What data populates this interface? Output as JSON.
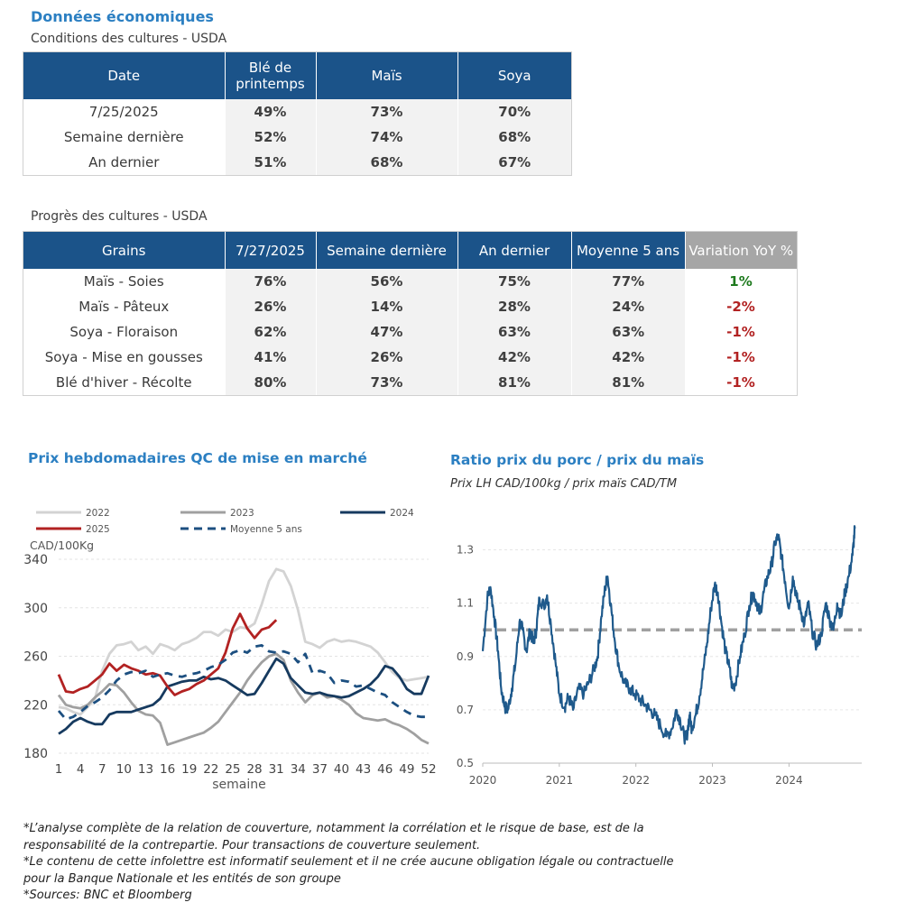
{
  "header": {
    "title": "Données économiques",
    "conditions_subtitle": "Conditions des cultures - USDA",
    "progress_subtitle": "Progrès des cultures - USDA"
  },
  "conditions_table": {
    "headers": [
      "Date",
      "Blé de printemps",
      "Maïs",
      "Soya"
    ],
    "rows": [
      {
        "label": "7/25/2025",
        "values": [
          "49%",
          "73%",
          "70%"
        ]
      },
      {
        "label": "Semaine dernière",
        "values": [
          "52%",
          "74%",
          "68%"
        ]
      },
      {
        "label": "An dernier",
        "values": [
          "51%",
          "68%",
          "67%"
        ]
      }
    ]
  },
  "progress_table": {
    "headers": [
      "Grains",
      "7/27/2025",
      "Semaine dernière",
      "An dernier",
      "Moyenne 5 ans",
      "Variation YoY %"
    ],
    "rows": [
      {
        "label": "Maïs - Soies",
        "values": [
          "76%",
          "56%",
          "75%",
          "77%"
        ],
        "variation": "1%"
      },
      {
        "label": "Maïs - Pâteux",
        "values": [
          "26%",
          "14%",
          "28%",
          "24%"
        ],
        "variation": "-2%"
      },
      {
        "label": "Soya - Floraison",
        "values": [
          "62%",
          "47%",
          "63%",
          "63%"
        ],
        "variation": "-1%"
      },
      {
        "label": "Soya - Mise en gousses",
        "values": [
          "41%",
          "26%",
          "42%",
          "42%"
        ],
        "variation": "-1%"
      },
      {
        "label": "Blé d'hiver - Récolte",
        "values": [
          "80%",
          "73%",
          "81%",
          "81%"
        ],
        "variation": "-1%"
      }
    ]
  },
  "colors": {
    "header_blue": "#1b5389",
    "title_blue": "#2b7fc2",
    "positive": "#1e7a1e",
    "negative": "#b22222"
  },
  "chart_data": [
    {
      "type": "line",
      "title": "Prix hebdomadaires QC de mise en marché",
      "ylabel": "CAD/100Kg",
      "xlabel": "semaine",
      "ylim": [
        180,
        340
      ],
      "yticks": [
        180,
        220,
        260,
        300,
        340
      ],
      "xticks": [
        1,
        4,
        7,
        10,
        13,
        16,
        19,
        22,
        25,
        28,
        31,
        34,
        37,
        40,
        43,
        46,
        49,
        52
      ],
      "grid": true,
      "legend": "top",
      "series": [
        {
          "name": "2022",
          "color": "#d3d3d3",
          "dash": false,
          "x": [
            1,
            2,
            3,
            4,
            5,
            6,
            7,
            8,
            9,
            10,
            11,
            12,
            13,
            14,
            15,
            16,
            17,
            18,
            19,
            20,
            21,
            22,
            23,
            24,
            25,
            26,
            27,
            28,
            29,
            30,
            31,
            32,
            33,
            34,
            35,
            36,
            37,
            38,
            39,
            40,
            41,
            42,
            43,
            44,
            45,
            46,
            47,
            48,
            49,
            50,
            51,
            52
          ],
          "y": [
            218,
            217,
            214,
            212,
            218,
            225,
            248,
            262,
            269,
            270,
            272,
            265,
            268,
            262,
            270,
            268,
            265,
            270,
            272,
            275,
            280,
            280,
            277,
            282,
            280,
            284,
            283,
            287,
            303,
            322,
            332,
            330,
            318,
            298,
            272,
            270,
            267,
            272,
            274,
            272,
            273,
            272,
            270,
            268,
            263,
            255,
            247,
            242,
            240,
            241,
            242,
            243
          ]
        },
        {
          "name": "2023",
          "color": "#a0a0a0",
          "dash": false,
          "x": [
            1,
            2,
            3,
            4,
            5,
            6,
            7,
            8,
            9,
            10,
            11,
            12,
            13,
            14,
            15,
            16,
            17,
            18,
            19,
            20,
            21,
            22,
            23,
            24,
            25,
            26,
            27,
            28,
            29,
            30,
            31,
            32,
            33,
            34,
            35,
            36,
            37,
            38,
            39,
            40,
            41,
            42,
            43,
            44,
            45,
            46,
            47,
            48,
            49,
            50,
            51,
            52
          ],
          "y": [
            228,
            220,
            218,
            217,
            220,
            226,
            231,
            237,
            236,
            230,
            222,
            215,
            212,
            211,
            205,
            187,
            189,
            191,
            193,
            195,
            197,
            201,
            206,
            214,
            222,
            230,
            240,
            248,
            255,
            260,
            262,
            257,
            240,
            230,
            222,
            228,
            230,
            226,
            227,
            224,
            220,
            213,
            209,
            208,
            207,
            208,
            205,
            203,
            200,
            196,
            191,
            188
          ]
        },
        {
          "name": "2024",
          "color": "#163a5f",
          "dash": false,
          "x": [
            1,
            2,
            3,
            4,
            5,
            6,
            7,
            8,
            9,
            10,
            11,
            12,
            13,
            14,
            15,
            16,
            17,
            18,
            19,
            20,
            21,
            22,
            23,
            24,
            25,
            26,
            27,
            28,
            29,
            30,
            31,
            32,
            33,
            34,
            35,
            36,
            37,
            38,
            39,
            40,
            41,
            42,
            43,
            44,
            45,
            46,
            47,
            48,
            49,
            50,
            51,
            52
          ],
          "y": [
            196,
            200,
            206,
            209,
            206,
            204,
            204,
            212,
            214,
            214,
            214,
            216,
            218,
            220,
            225,
            235,
            237,
            239,
            240,
            240,
            243,
            241,
            242,
            240,
            236,
            232,
            228,
            229,
            238,
            248,
            258,
            254,
            242,
            236,
            230,
            229,
            230,
            228,
            227,
            226,
            227,
            230,
            233,
            237,
            243,
            252,
            250,
            243,
            233,
            229,
            229,
            244
          ]
        },
        {
          "name": "2025",
          "color": "#b22222",
          "dash": false,
          "x": [
            1,
            2,
            3,
            4,
            5,
            6,
            7,
            8,
            9,
            10,
            11,
            12,
            13,
            14,
            15,
            16,
            17,
            18,
            19,
            20,
            21,
            22,
            23,
            24,
            25,
            26,
            27,
            28,
            29,
            30,
            31
          ],
          "y": [
            245,
            231,
            230,
            233,
            235,
            240,
            245,
            254,
            248,
            253,
            250,
            248,
            245,
            246,
            244,
            235,
            228,
            231,
            233,
            237,
            240,
            245,
            250,
            263,
            283,
            295,
            283,
            275,
            282,
            284,
            290
          ]
        },
        {
          "name": "Moyenne 5 ans",
          "color": "#1c4f80",
          "dash": true,
          "x": [
            1,
            2,
            3,
            4,
            5,
            6,
            7,
            8,
            9,
            10,
            11,
            12,
            13,
            14,
            15,
            16,
            17,
            18,
            19,
            20,
            21,
            22,
            23,
            24,
            25,
            26,
            27,
            28,
            29,
            30,
            31,
            32,
            33,
            34,
            35,
            36,
            37,
            38,
            39,
            40,
            41,
            42,
            43,
            44,
            45,
            46,
            47,
            48,
            49,
            50,
            51,
            52
          ],
          "y": [
            215,
            208,
            210,
            214,
            219,
            222,
            226,
            232,
            240,
            245,
            247,
            246,
            248,
            243,
            245,
            246,
            244,
            243,
            245,
            246,
            248,
            251,
            253,
            257,
            263,
            265,
            263,
            268,
            269,
            264,
            263,
            264,
            262,
            255,
            262,
            246,
            248,
            246,
            238,
            240,
            239,
            235,
            236,
            233,
            230,
            228,
            222,
            218,
            214,
            211,
            210,
            210
          ]
        }
      ]
    },
    {
      "type": "line",
      "title": "Ratio prix du porc / prix du maïs",
      "subtitle": "Prix LH CAD/100kg / prix maïs CAD/TM",
      "ylim": [
        0.5,
        1.4
      ],
      "yticks": [
        0.5,
        0.7,
        0.9,
        1.1,
        1.3
      ],
      "xticks": [
        "2020",
        "2021",
        "2022",
        "2023",
        "2024"
      ],
      "xrange": [
        2020.0,
        2024.95
      ],
      "grid": true,
      "reference_line": {
        "value": 1.0,
        "color": "#a0a0a0",
        "dash": true
      },
      "series": [
        {
          "name": "",
          "color": "#1f5a8c",
          "points": [
            [
              2020.0,
              0.92
            ],
            [
              2020.06,
              1.12
            ],
            [
              2020.1,
              1.16
            ],
            [
              2020.15,
              1.05
            ],
            [
              2020.2,
              0.92
            ],
            [
              2020.24,
              0.78
            ],
            [
              2020.29,
              0.71
            ],
            [
              2020.33,
              0.7
            ],
            [
              2020.38,
              0.78
            ],
            [
              2020.43,
              0.88
            ],
            [
              2020.48,
              1.03
            ],
            [
              2020.52,
              1.0
            ],
            [
              2020.57,
              0.92
            ],
            [
              2020.62,
              1.0
            ],
            [
              2020.66,
              0.95
            ],
            [
              2020.7,
              1.0
            ],
            [
              2020.74,
              1.12
            ],
            [
              2020.8,
              1.09
            ],
            [
              2020.84,
              1.13
            ],
            [
              2020.89,
              1.02
            ],
            [
              2020.95,
              0.88
            ],
            [
              2021.0,
              0.76
            ],
            [
              2021.07,
              0.71
            ],
            [
              2021.12,
              0.75
            ],
            [
              2021.18,
              0.7
            ],
            [
              2021.25,
              0.78
            ],
            [
              2021.32,
              0.76
            ],
            [
              2021.38,
              0.8
            ],
            [
              2021.45,
              0.85
            ],
            [
              2021.5,
              0.9
            ],
            [
              2021.55,
              1.05
            ],
            [
              2021.6,
              1.16
            ],
            [
              2021.63,
              1.2
            ],
            [
              2021.67,
              1.1
            ],
            [
              2021.72,
              0.97
            ],
            [
              2021.78,
              0.86
            ],
            [
              2021.85,
              0.8
            ],
            [
              2021.92,
              0.78
            ],
            [
              2021.98,
              0.76
            ],
            [
              2022.05,
              0.74
            ],
            [
              2022.12,
              0.72
            ],
            [
              2022.18,
              0.7
            ],
            [
              2022.25,
              0.68
            ],
            [
              2022.32,
              0.64
            ],
            [
              2022.4,
              0.6
            ],
            [
              2022.47,
              0.63
            ],
            [
              2022.53,
              0.7
            ],
            [
              2022.58,
              0.66
            ],
            [
              2022.63,
              0.6
            ],
            [
              2022.66,
              0.59
            ],
            [
              2022.7,
              0.68
            ],
            [
              2022.73,
              0.63
            ],
            [
              2022.78,
              0.68
            ],
            [
              2022.83,
              0.75
            ],
            [
              2022.88,
              0.85
            ],
            [
              2022.93,
              0.95
            ],
            [
              2022.98,
              1.08
            ],
            [
              2023.03,
              1.17
            ],
            [
              2023.07,
              1.14
            ],
            [
              2023.12,
              1.02
            ],
            [
              2023.17,
              0.92
            ],
            [
              2023.22,
              0.86
            ],
            [
              2023.26,
              0.78
            ],
            [
              2023.3,
              0.8
            ],
            [
              2023.36,
              0.9
            ],
            [
              2023.42,
              0.98
            ],
            [
              2023.48,
              1.09
            ],
            [
              2023.53,
              1.14
            ],
            [
              2023.58,
              1.1
            ],
            [
              2023.62,
              1.06
            ],
            [
              2023.67,
              1.14
            ],
            [
              2023.72,
              1.2
            ],
            [
              2023.77,
              1.24
            ],
            [
              2023.82,
              1.33
            ],
            [
              2023.86,
              1.35
            ],
            [
              2023.9,
              1.28
            ],
            [
              2023.95,
              1.18
            ],
            [
              2024.0,
              1.08
            ],
            [
              2024.05,
              1.2
            ],
            [
              2024.1,
              1.12
            ],
            [
              2024.15,
              1.08
            ],
            [
              2024.2,
              1.02
            ],
            [
              2024.25,
              1.1
            ],
            [
              2024.3,
              1.0
            ],
            [
              2024.36,
              0.94
            ],
            [
              2024.42,
              0.98
            ],
            [
              2024.48,
              1.1
            ],
            [
              2024.53,
              1.04
            ],
            [
              2024.58,
              1.0
            ],
            [
              2024.63,
              1.1
            ],
            [
              2024.68,
              1.05
            ],
            [
              2024.73,
              1.14
            ],
            [
              2024.78,
              1.2
            ],
            [
              2024.83,
              1.28
            ],
            [
              2024.86,
              1.38
            ]
          ]
        }
      ]
    }
  ],
  "footnotes": [
    "*L’analyse complète de la relation de couverture, notamment la corrélation et le risque de base, est de la",
    "responsabilité de la contrepartie. Pour transactions de couverture seulement.",
    "*Le contenu de cette infolettre est informatif seulement et il ne crée aucune obligation légale ou contractuelle",
    "pour la Banque Nationale et les entités de son groupe",
    "*Sources: BNC et Bloomberg"
  ]
}
